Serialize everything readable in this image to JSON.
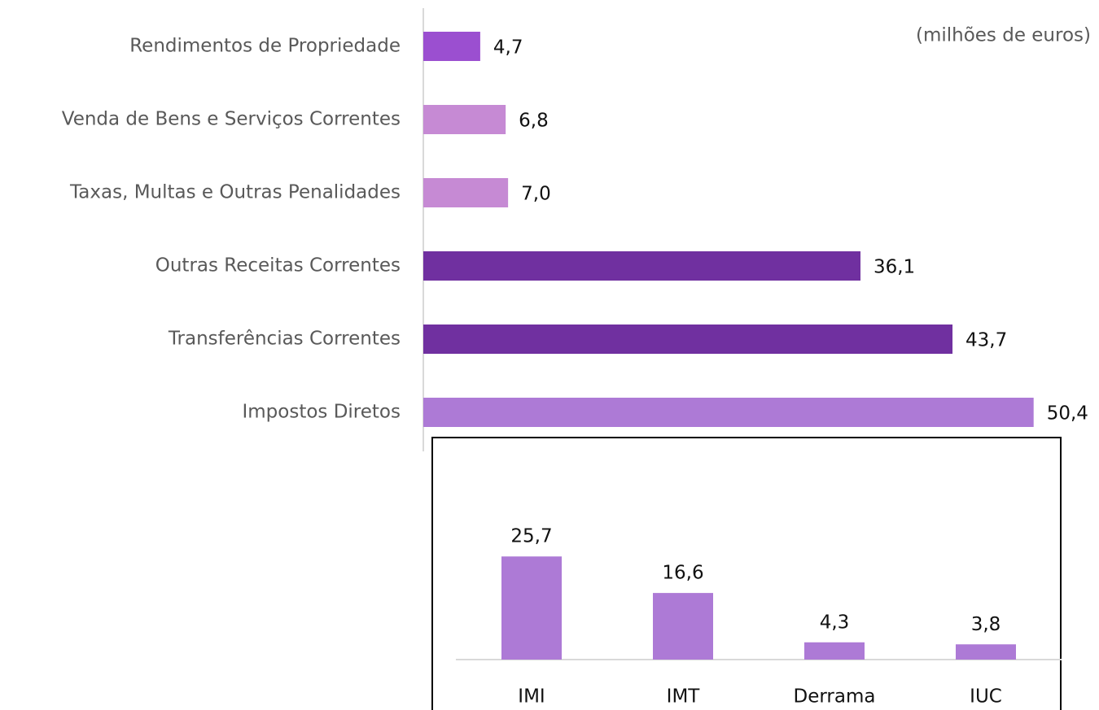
{
  "chart_data": [
    {
      "type": "bar",
      "orientation": "horizontal",
      "subtitle": "(milhões de euros)",
      "categories": [
        "Rendimentos de Propriedade",
        "Venda de Bens e Serviços Correntes",
        "Taxas, Multas e Outras Penalidades",
        "Outras Receitas Correntes",
        "Transferências Correntes",
        "Impostos Diretos"
      ],
      "values": [
        4.7,
        6.8,
        7.0,
        36.1,
        43.7,
        50.4
      ],
      "value_labels": [
        "4,7",
        "6,8",
        "7,0",
        "36,1",
        "43,7",
        "50,4"
      ],
      "colors": [
        "#9b4fd0",
        "#c68ad4",
        "#c68ad4",
        "#7030a0",
        "#7030a0",
        "#ad7ad6"
      ],
      "xlim": [
        0,
        56
      ]
    },
    {
      "type": "bar",
      "orientation": "vertical",
      "categories": [
        "IMI",
        "IMT",
        "Derrama",
        "IUC"
      ],
      "values": [
        25.7,
        16.6,
        4.3,
        3.8
      ],
      "value_labels": [
        "25,7",
        "16,6",
        "4,3",
        "3,8"
      ],
      "color": "#ad7ad6",
      "ylim": [
        0,
        30
      ]
    }
  ]
}
